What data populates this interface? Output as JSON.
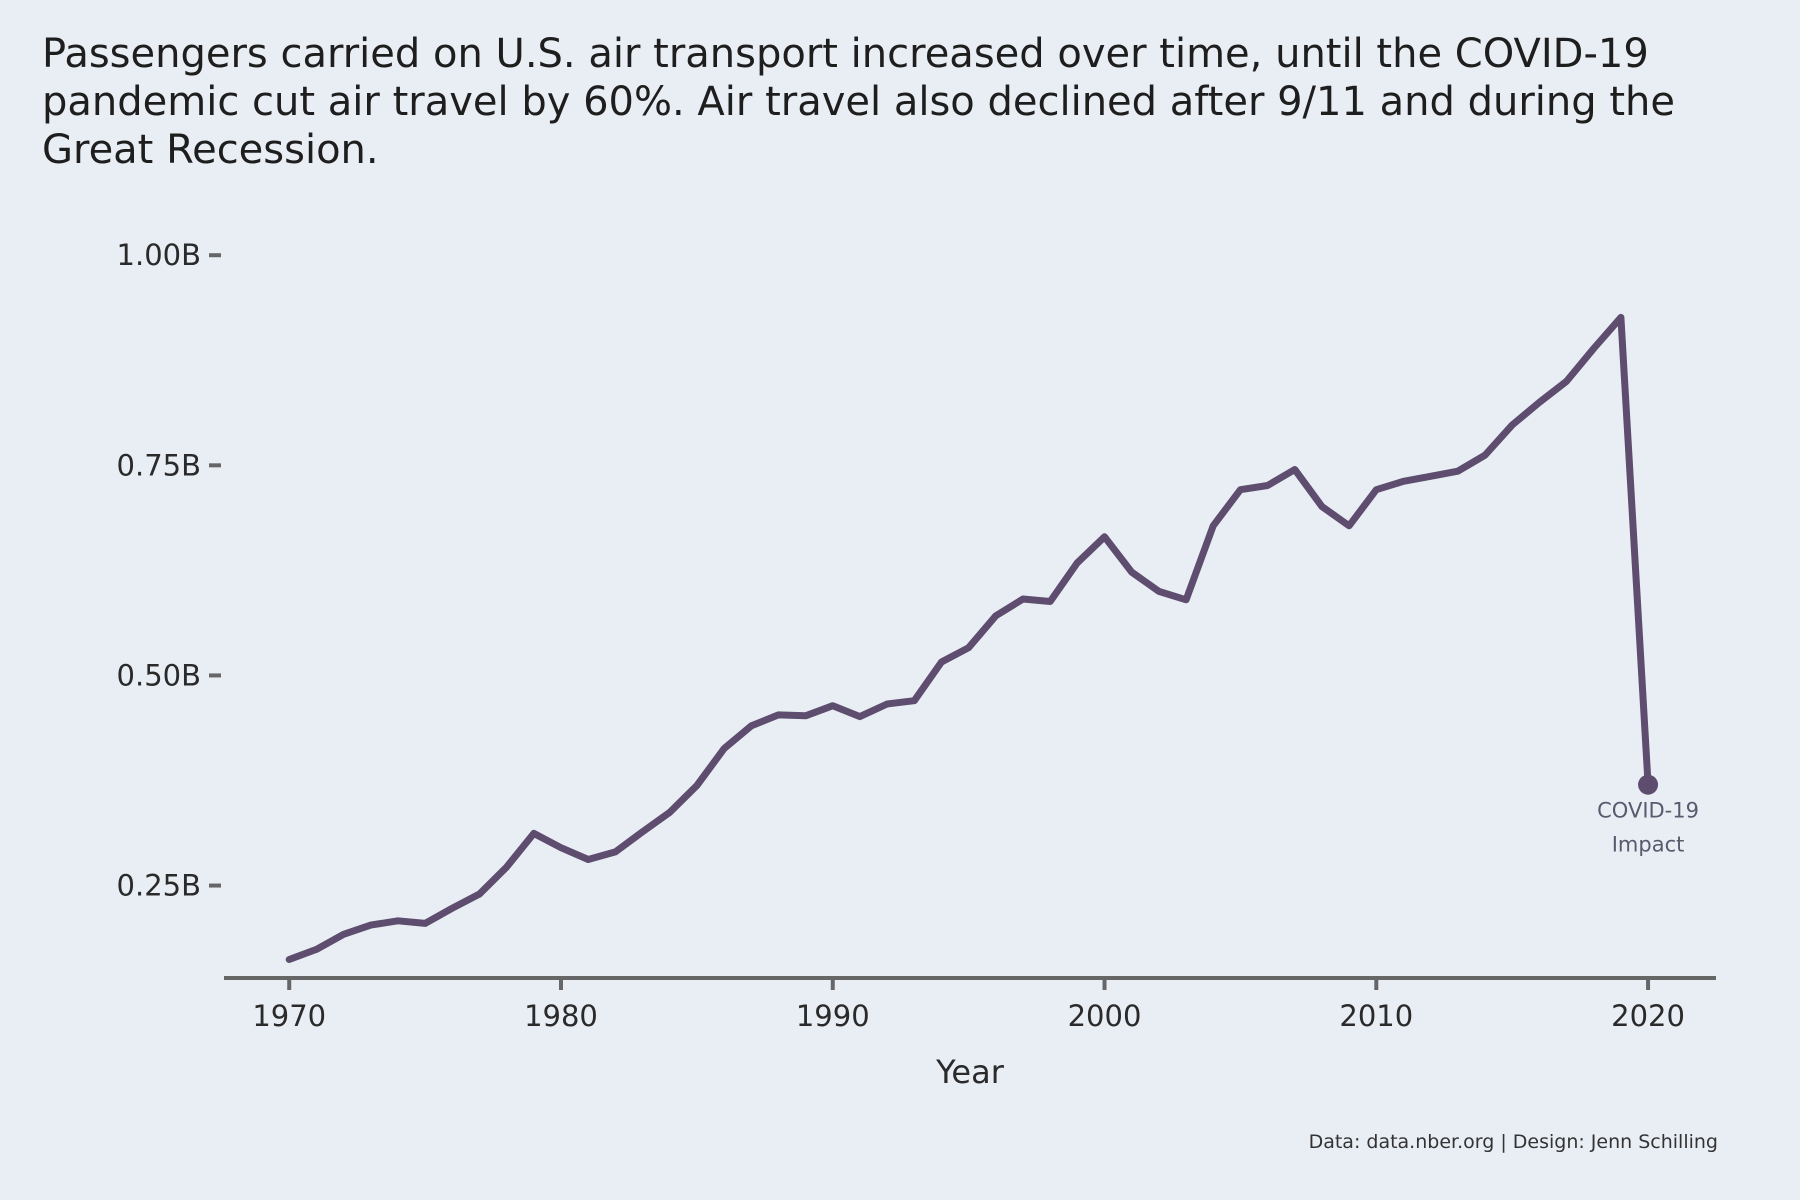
{
  "title": "Passengers carried on U.S. air transport increased over time, until the COVID-19 pandemic cut air travel by 60%. Air travel also declined after 9/11 and during the Great Recession.",
  "caption": "Data: data.nber.org | Design: Jenn Schilling",
  "colors": {
    "background": "#e9eef5",
    "line": "#5e4d6e",
    "axis": "#666666",
    "annotation": "#5a5a6e"
  },
  "chart_data": {
    "type": "line",
    "title": "Passengers carried on U.S. air transport increased over time, until the COVID-19 pandemic cut air travel by 60%. Air travel also declined after 9/11 and during the Great Recession.",
    "xlabel": "Year",
    "ylabel": "",
    "xlim": [
      1967.6,
      2022.5
    ],
    "ylim": [
      0.14,
      1.03
    ],
    "x_ticks": [
      1970,
      1980,
      1990,
      2000,
      2010,
      2020
    ],
    "x_tick_labels": [
      "1970",
      "1980",
      "1990",
      "2000",
      "2010",
      "2020"
    ],
    "y_ticks": [
      0.25,
      0.5,
      0.75,
      1.0
    ],
    "y_tick_labels": [
      "0.25B",
      "0.50B",
      "0.75B",
      "1.00B"
    ],
    "grid": false,
    "series": [
      {
        "x": [
          1970,
          1971,
          1972,
          1973,
          1974,
          1975,
          1976,
          1977,
          1978,
          1979,
          1980,
          1981,
          1982,
          1983,
          1984,
          1985,
          1986,
          1987,
          1988,
          1989,
          1990,
          1991,
          1992,
          1993,
          1994,
          1995,
          1996,
          1997,
          1998,
          1999,
          2000,
          2001,
          2002,
          2003,
          2004,
          2005,
          2006,
          2007,
          2008,
          2009,
          2010,
          2011,
          2012,
          2013,
          2014,
          2015,
          2016,
          2017,
          2018,
          2019,
          2020
        ],
        "values": [
          0.162,
          0.174,
          0.192,
          0.203,
          0.208,
          0.205,
          0.223,
          0.24,
          0.272,
          0.312,
          0.295,
          0.281,
          0.29,
          0.314,
          0.337,
          0.369,
          0.413,
          0.44,
          0.453,
          0.452,
          0.464,
          0.451,
          0.466,
          0.47,
          0.516,
          0.533,
          0.571,
          0.591,
          0.588,
          0.634,
          0.665,
          0.623,
          0.6,
          0.59,
          0.678,
          0.721,
          0.726,
          0.745,
          0.701,
          0.678,
          0.721,
          0.731,
          0.737,
          0.743,
          0.762,
          0.798,
          0.825,
          0.85,
          0.889,
          0.926,
          0.37
        ]
      }
    ],
    "annotations": [
      {
        "x": 2020,
        "y": 0.37,
        "lines": [
          "COVID-19",
          "Impact"
        ]
      }
    ]
  }
}
